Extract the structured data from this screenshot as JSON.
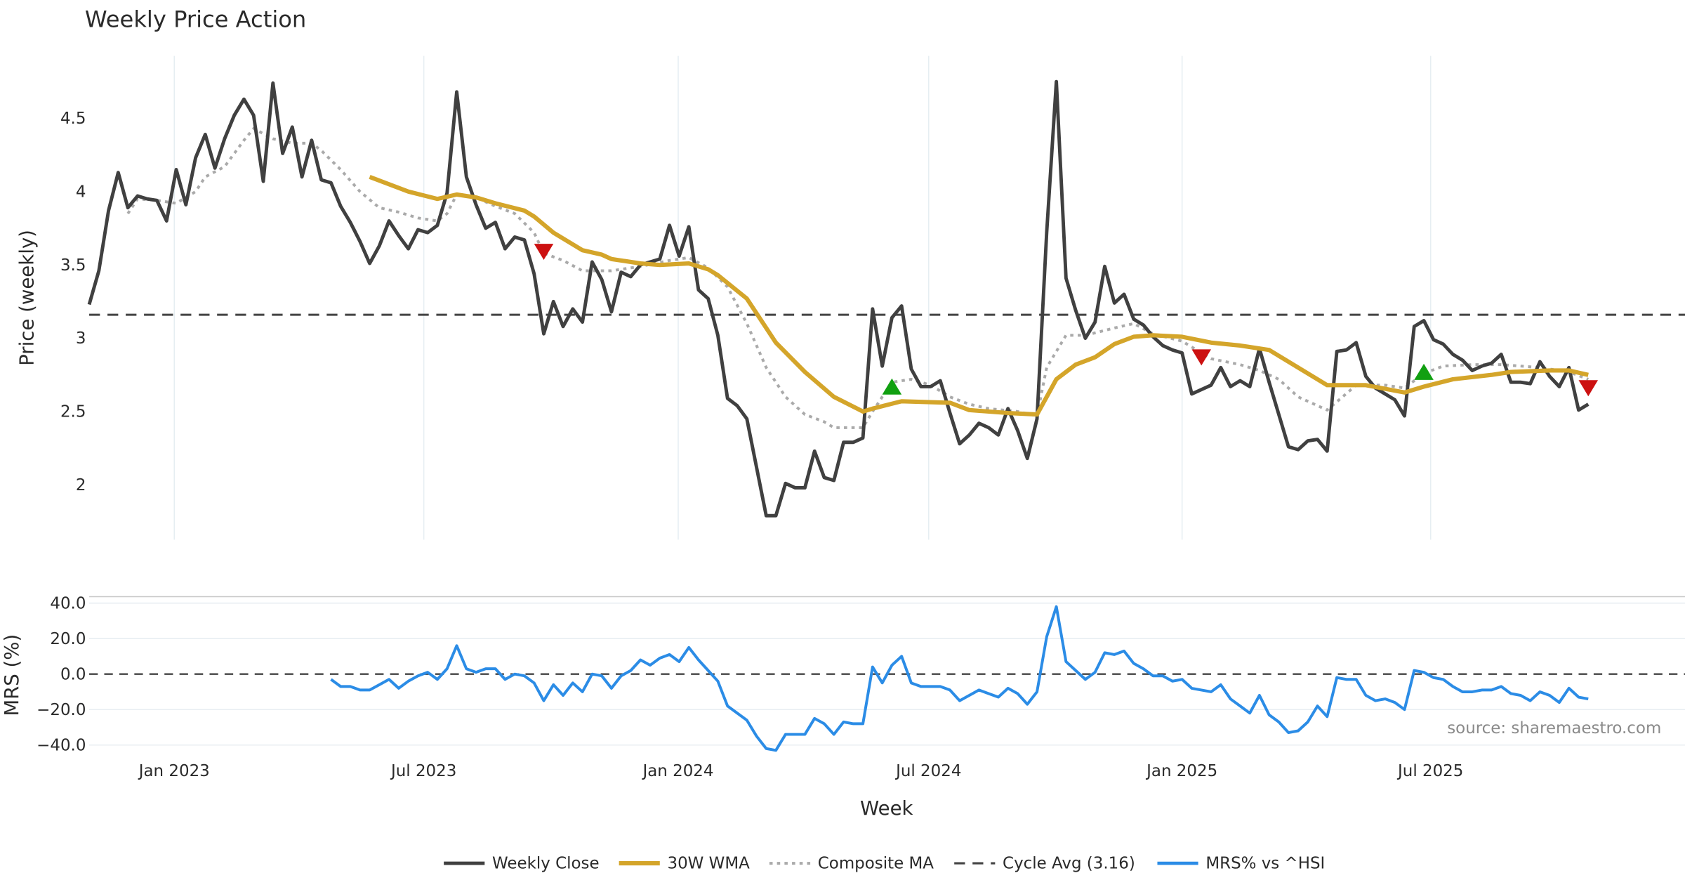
{
  "chart_data": [
    {
      "type": "line",
      "title": "Weekly Price Action",
      "xlabel": "Week",
      "ylabel": "Price (weekly)",
      "ylim": [
        1.63,
        4.93
      ],
      "start_week": "2022-11-04",
      "x_ticks": [
        "Jan 2023",
        "Jul 2023",
        "Jan 2024",
        "Jul 2024",
        "Jan 2025",
        "Jul 2025"
      ],
      "x_tick_week_index": [
        8.8,
        34.6,
        60.9,
        86.8,
        113,
        138.7
      ],
      "y_ticks": [
        "2",
        "2.5",
        "3",
        "3.5",
        "4",
        "4.5"
      ],
      "y_tick_values": [
        2,
        2.5,
        3,
        3.5,
        4,
        4.5
      ],
      "grid": "vertical",
      "series": [
        {
          "name": "Weekly Close",
          "color": "#404040",
          "style": "solid",
          "values": [
            3.23,
            3.46,
            3.87,
            4.13,
            3.89,
            3.97,
            3.95,
            3.94,
            3.8,
            4.15,
            3.91,
            4.23,
            4.39,
            4.16,
            4.36,
            4.52,
            4.63,
            4.52,
            4.07,
            4.74,
            4.26,
            4.44,
            4.1,
            4.35,
            4.08,
            4.06,
            3.9,
            3.79,
            3.66,
            3.51,
            3.63,
            3.8,
            3.7,
            3.61,
            3.74,
            3.72,
            3.77,
            3.99,
            4.68,
            4.1,
            3.91,
            3.75,
            3.79,
            3.61,
            3.69,
            3.67,
            3.44,
            3.03,
            3.25,
            3.08,
            3.2,
            3.11,
            3.52,
            3.4,
            3.18,
            3.45,
            3.42,
            3.5,
            3.52,
            3.54,
            3.77,
            3.56,
            3.76,
            3.33,
            3.27,
            3.02,
            2.59,
            2.54,
            2.45,
            2.12,
            1.79,
            1.79,
            2.01,
            1.98,
            1.98,
            2.23,
            2.05,
            2.03,
            2.29,
            2.29,
            2.32,
            3.2,
            2.81,
            3.14,
            3.22,
            2.79,
            2.67,
            2.67,
            2.71,
            2.49,
            2.28,
            2.34,
            2.42,
            2.39,
            2.34,
            2.52,
            2.37,
            2.18,
            2.45,
            3.72,
            4.75,
            3.41,
            3.19,
            3.0,
            3.11,
            3.49,
            3.24,
            3.3,
            3.13,
            3.09,
            3.01,
            2.95,
            2.92,
            2.9,
            2.62,
            2.65,
            2.68,
            2.8,
            2.67,
            2.71,
            2.67,
            2.93,
            2.7,
            2.48,
            2.26,
            2.24,
            2.3,
            2.31,
            2.23,
            2.91,
            2.92,
            2.97,
            2.74,
            2.66,
            2.62,
            2.58,
            2.47,
            3.08,
            3.12,
            2.99,
            2.96,
            2.89,
            2.85,
            2.78,
            2.81,
            2.83,
            2.89,
            2.7,
            2.7,
            2.69,
            2.84,
            2.74,
            2.67,
            2.8,
            2.51,
            2.55
          ]
        },
        {
          "name": "30W WMA",
          "color": "#d4a52a",
          "style": "solid",
          "points": [
            [
              29,
              4.1
            ],
            [
              33,
              4.0
            ],
            [
              36,
              3.95
            ],
            [
              38,
              3.98
            ],
            [
              40,
              3.96
            ],
            [
              42,
              3.92
            ],
            [
              45,
              3.87
            ],
            [
              46,
              3.83
            ],
            [
              48,
              3.72
            ],
            [
              51,
              3.6
            ],
            [
              53,
              3.57
            ],
            [
              54,
              3.54
            ],
            [
              57,
              3.51
            ],
            [
              59,
              3.5
            ],
            [
              62,
              3.51
            ],
            [
              64,
              3.47
            ],
            [
              65,
              3.43
            ],
            [
              68,
              3.27
            ],
            [
              71,
              2.97
            ],
            [
              74,
              2.77
            ],
            [
              77,
              2.6
            ],
            [
              80,
              2.5
            ],
            [
              81,
              2.52
            ],
            [
              84,
              2.57
            ],
            [
              89,
              2.56
            ],
            [
              91,
              2.51
            ],
            [
              95,
              2.49
            ],
            [
              98,
              2.48
            ],
            [
              100,
              2.72
            ],
            [
              102,
              2.82
            ],
            [
              104,
              2.87
            ],
            [
              106,
              2.96
            ],
            [
              108,
              3.01
            ],
            [
              110,
              3.02
            ],
            [
              113,
              3.01
            ],
            [
              116,
              2.97
            ],
            [
              119,
              2.95
            ],
            [
              122,
              2.92
            ],
            [
              123,
              2.88
            ],
            [
              128,
              2.68
            ],
            [
              132,
              2.68
            ],
            [
              136,
              2.63
            ],
            [
              138,
              2.67
            ],
            [
              141,
              2.72
            ],
            [
              145,
              2.75
            ],
            [
              147,
              2.77
            ],
            [
              151,
              2.78
            ],
            [
              153,
              2.78
            ],
            [
              155,
              2.75
            ]
          ]
        },
        {
          "name": "Composite MA",
          "color": "#aaaaaa",
          "style": "dotted",
          "points": [
            [
              4,
              3.85
            ],
            [
              5,
              3.95
            ],
            [
              7,
              3.94
            ],
            [
              9,
              3.92
            ],
            [
              11,
              4.0
            ],
            [
              12,
              4.1
            ],
            [
              14,
              4.17
            ],
            [
              16,
              4.35
            ],
            [
              17,
              4.43
            ],
            [
              19,
              4.36
            ],
            [
              21,
              4.33
            ],
            [
              23,
              4.33
            ],
            [
              24,
              4.28
            ],
            [
              26,
              4.15
            ],
            [
              28,
              4.0
            ],
            [
              30,
              3.89
            ],
            [
              32,
              3.86
            ],
            [
              34,
              3.82
            ],
            [
              36,
              3.8
            ],
            [
              37,
              3.85
            ],
            [
              38,
              3.98
            ],
            [
              40,
              3.96
            ],
            [
              42,
              3.9
            ],
            [
              44,
              3.85
            ],
            [
              46,
              3.72
            ],
            [
              47,
              3.58
            ],
            [
              49,
              3.53
            ],
            [
              51,
              3.46
            ],
            [
              54,
              3.46
            ],
            [
              57,
              3.49
            ],
            [
              60,
              3.53
            ],
            [
              62,
              3.55
            ],
            [
              64,
              3.48
            ],
            [
              66,
              3.35
            ],
            [
              68,
              3.1
            ],
            [
              70,
              2.8
            ],
            [
              72,
              2.6
            ],
            [
              74,
              2.48
            ],
            [
              76,
              2.43
            ],
            [
              77,
              2.39
            ],
            [
              80,
              2.39
            ],
            [
              81,
              2.5
            ],
            [
              83,
              2.7
            ],
            [
              85,
              2.72
            ],
            [
              87,
              2.68
            ],
            [
              89,
              2.6
            ],
            [
              91,
              2.55
            ],
            [
              93,
              2.52
            ],
            [
              96,
              2.5
            ],
            [
              98,
              2.47
            ],
            [
              99,
              2.8
            ],
            [
              101,
              3.02
            ],
            [
              103,
              3.02
            ],
            [
              106,
              3.07
            ],
            [
              108,
              3.1
            ],
            [
              110,
              3.03
            ],
            [
              113,
              2.98
            ],
            [
              116,
              2.86
            ],
            [
              119,
              2.82
            ],
            [
              121,
              2.78
            ],
            [
              123,
              2.72
            ],
            [
              125,
              2.6
            ],
            [
              128,
              2.51
            ],
            [
              131,
              2.68
            ],
            [
              134,
              2.68
            ],
            [
              136,
              2.66
            ],
            [
              138,
              2.76
            ],
            [
              140,
              2.81
            ],
            [
              143,
              2.82
            ],
            [
              146,
              2.82
            ],
            [
              150,
              2.8
            ],
            [
              153,
              2.77
            ],
            [
              155,
              2.72
            ]
          ]
        },
        {
          "name": "Cycle Avg (3.16)",
          "color": "#444444",
          "style": "dashed",
          "value": 3.16
        }
      ],
      "markers": [
        {
          "type": "sell",
          "shape": "triangle-down",
          "color": "#cc1111",
          "week_index": 47,
          "value": 3.6
        },
        {
          "type": "buy",
          "shape": "triangle-up",
          "color": "#11a011",
          "week_index": 83,
          "value": 2.66
        },
        {
          "type": "sell",
          "shape": "triangle-down",
          "color": "#cc1111",
          "week_index": 115,
          "value": 2.88
        },
        {
          "type": "buy",
          "shape": "triangle-up",
          "color": "#11a011",
          "week_index": 138,
          "value": 2.76
        },
        {
          "type": "sell",
          "shape": "triangle-down",
          "color": "#cc1111",
          "week_index": 155,
          "value": 2.67
        }
      ]
    },
    {
      "type": "line",
      "title": "",
      "xlabel": "Week",
      "ylabel": "MRS (%)",
      "ylim": [
        -45,
        45
      ],
      "y_ticks": [
        "40.0",
        "20.0",
        "0.0",
        "−20.0",
        "−40.0"
      ],
      "y_tick_values": [
        40,
        20,
        0,
        -20,
        -40
      ],
      "series": [
        {
          "name": "MRS% vs ^HSI",
          "color": "#2b8ce6",
          "style": "solid",
          "start_index": 25,
          "values": [
            -3,
            -7,
            -7,
            -9,
            -9,
            -6,
            -3,
            -8,
            -4,
            -1,
            1,
            -3,
            3,
            16,
            3,
            1,
            3,
            3,
            -3,
            0,
            -1,
            -5,
            -15,
            -6,
            -12,
            -5,
            -10,
            0,
            -1,
            -8,
            -1,
            2,
            8,
            5,
            9,
            11,
            7,
            15,
            8,
            2,
            -4,
            -18,
            -22,
            -26,
            -35,
            -42,
            -43,
            -34,
            -34,
            -34,
            -25,
            -28,
            -34,
            -27,
            -28,
            -28,
            4,
            -5,
            5,
            10,
            -5,
            -7,
            -7,
            -7,
            -9,
            -15,
            -12,
            -9,
            -11,
            -13,
            -8,
            -11,
            -17,
            -10,
            21,
            38,
            7,
            2,
            -3,
            1,
            12,
            11,
            13,
            6,
            3,
            -1,
            -1,
            -4,
            -3,
            -8,
            -9,
            -10,
            -6,
            -14,
            -18,
            -22,
            -12,
            -23,
            -27,
            -33,
            -32,
            -27,
            -18,
            -24,
            -2,
            -3,
            -3,
            -12,
            -15,
            -14,
            -16,
            -20,
            2,
            1,
            -2,
            -3,
            -7,
            -10,
            -10,
            -9,
            -9,
            -7,
            -11,
            -12,
            -15,
            -10,
            -12,
            -16,
            -8,
            -13,
            -14
          ]
        },
        {
          "name": "zero",
          "color": "#444444",
          "style": "dashed",
          "value": 0
        }
      ]
    }
  ],
  "legend": {
    "placement": "bottom-center",
    "items": [
      "Weekly Close",
      "30W WMA",
      "Composite MA",
      "Cycle Avg (3.16)",
      "MRS% vs ^HSI"
    ]
  },
  "source": "source: sharemaestro.com"
}
